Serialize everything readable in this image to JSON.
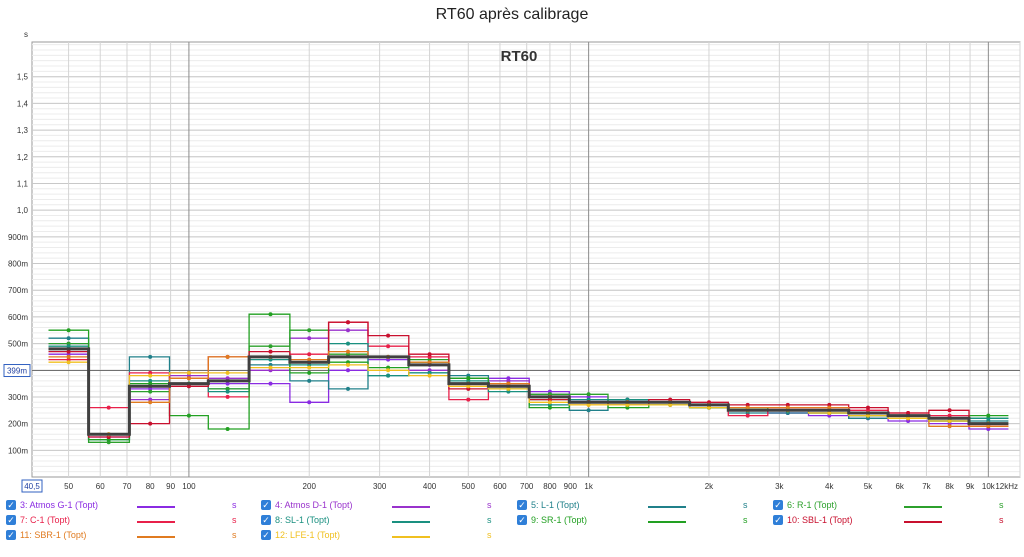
{
  "window_title": "RT60 après calibrage",
  "chart_data": {
    "type": "line",
    "step": true,
    "title": "RT60",
    "ylabel": "s",
    "xlabel": "",
    "x_scale": "log",
    "xlim": [
      40.5,
      12000
    ],
    "ylim": [
      0,
      1.63
    ],
    "grid": true,
    "cursor_value": "399m",
    "cursor_y": 0.399,
    "x_start_label": "40,5",
    "x_ticks": [
      {
        "v": 50,
        "label": "50"
      },
      {
        "v": 60,
        "label": "60"
      },
      {
        "v": 70,
        "label": "70"
      },
      {
        "v": 80,
        "label": "80"
      },
      {
        "v": 90,
        "label": "90"
      },
      {
        "v": 100,
        "label": "100"
      },
      {
        "v": 200,
        "label": "200"
      },
      {
        "v": 300,
        "label": "300"
      },
      {
        "v": 400,
        "label": "400"
      },
      {
        "v": 500,
        "label": "500"
      },
      {
        "v": 600,
        "label": "600"
      },
      {
        "v": 700,
        "label": "700"
      },
      {
        "v": 800,
        "label": "800"
      },
      {
        "v": 900,
        "label": "900"
      },
      {
        "v": 1000,
        "label": "1k"
      },
      {
        "v": 2000,
        "label": "2k"
      },
      {
        "v": 3000,
        "label": "3k"
      },
      {
        "v": 4000,
        "label": "4k"
      },
      {
        "v": 5000,
        "label": "5k"
      },
      {
        "v": 6000,
        "label": "6k"
      },
      {
        "v": 7000,
        "label": "7k"
      },
      {
        "v": 8000,
        "label": "8k"
      },
      {
        "v": 9000,
        "label": "9k"
      },
      {
        "v": 10000,
        "label": "10k"
      },
      {
        "v": 12000,
        "label": "12kHz"
      }
    ],
    "y_ticks": [
      {
        "v": 0.1,
        "label": "100m"
      },
      {
        "v": 0.2,
        "label": "200m"
      },
      {
        "v": 0.3,
        "label": "300m"
      },
      {
        "v": 0.4,
        "label": "400m"
      },
      {
        "v": 0.5,
        "label": "500m"
      },
      {
        "v": 0.6,
        "label": "600m"
      },
      {
        "v": 0.7,
        "label": "700m"
      },
      {
        "v": 0.8,
        "label": "800m"
      },
      {
        "v": 0.9,
        "label": "900m"
      },
      {
        "v": 1.0,
        "label": "1,0"
      },
      {
        "v": 1.1,
        "label": "1,1"
      },
      {
        "v": 1.2,
        "label": "1,2"
      },
      {
        "v": 1.3,
        "label": "1,3"
      },
      {
        "v": 1.4,
        "label": "1,4"
      },
      {
        "v": 1.5,
        "label": "1,5"
      }
    ],
    "bands": [
      50,
      63,
      80,
      100,
      125,
      160,
      200,
      250,
      315,
      400,
      500,
      630,
      800,
      1000,
      1250,
      1600,
      2000,
      2500,
      3150,
      4000,
      5000,
      6300,
      8000,
      10000
    ],
    "series": [
      {
        "name": "3: Atmos G-1 (Topt)",
        "color": "#8a2be2",
        "values": [
          0.46,
          0.15,
          0.33,
          0.39,
          0.35,
          0.35,
          0.28,
          0.4,
          0.44,
          0.42,
          0.35,
          0.37,
          0.32,
          0.3,
          0.29,
          0.28,
          0.27,
          0.25,
          0.24,
          0.23,
          0.22,
          0.21,
          0.2,
          0.18
        ]
      },
      {
        "name": "4: Atmos D-1 (Topt)",
        "color": "#9932cc",
        "values": [
          0.5,
          0.16,
          0.29,
          0.38,
          0.37,
          0.4,
          0.52,
          0.55,
          0.45,
          0.4,
          0.34,
          0.36,
          0.31,
          0.29,
          0.28,
          0.27,
          0.26,
          0.25,
          0.24,
          0.24,
          0.23,
          0.22,
          0.21,
          0.19
        ]
      },
      {
        "name": "5: L-1 (Topt)",
        "color": "#20808a",
        "values": [
          0.52,
          0.14,
          0.45,
          0.35,
          0.33,
          0.42,
          0.36,
          0.33,
          0.38,
          0.39,
          0.38,
          0.33,
          0.29,
          0.25,
          0.29,
          0.28,
          0.26,
          0.24,
          0.24,
          0.24,
          0.22,
          0.23,
          0.22,
          0.21
        ]
      },
      {
        "name": "6: R-1 (Topt)",
        "color": "#2ca02c",
        "values": [
          0.5,
          0.13,
          0.32,
          0.35,
          0.33,
          0.49,
          0.55,
          0.46,
          0.45,
          0.44,
          0.37,
          0.34,
          0.31,
          0.31,
          0.27,
          0.28,
          0.26,
          0.25,
          0.25,
          0.25,
          0.23,
          0.23,
          0.22,
          0.22
        ]
      },
      {
        "name": "7: C-1 (Topt)",
        "color": "#e8204a",
        "values": [
          0.44,
          0.26,
          0.39,
          0.37,
          0.3,
          0.45,
          0.46,
          0.58,
          0.49,
          0.45,
          0.29,
          0.34,
          0.3,
          0.28,
          0.27,
          0.28,
          0.27,
          0.23,
          0.26,
          0.26,
          0.25,
          0.24,
          0.23,
          0.19
        ]
      },
      {
        "name": "8: SL-1 (Topt)",
        "color": "#1a9080",
        "values": [
          0.49,
          0.14,
          0.36,
          0.34,
          0.32,
          0.44,
          0.42,
          0.5,
          0.38,
          0.39,
          0.36,
          0.32,
          0.27,
          0.29,
          0.29,
          0.28,
          0.26,
          0.26,
          0.25,
          0.25,
          0.23,
          0.22,
          0.21,
          0.22
        ]
      },
      {
        "name": "9: SR-1 (Topt)",
        "color": "#22a022",
        "values": [
          0.55,
          0.14,
          0.35,
          0.23,
          0.18,
          0.61,
          0.39,
          0.43,
          0.41,
          0.43,
          0.37,
          0.35,
          0.26,
          0.28,
          0.26,
          0.27,
          0.26,
          0.26,
          0.25,
          0.24,
          0.23,
          0.23,
          0.21,
          0.23
        ]
      },
      {
        "name": "10: SBL-1 (Topt)",
        "color": "#c8102e",
        "values": [
          0.47,
          0.15,
          0.2,
          0.34,
          0.45,
          0.47,
          0.43,
          0.58,
          0.53,
          0.46,
          0.33,
          0.35,
          0.29,
          0.28,
          0.28,
          0.29,
          0.28,
          0.27,
          0.27,
          0.27,
          0.26,
          0.24,
          0.25,
          0.2
        ]
      },
      {
        "name": "11: SBR-1 (Topt)",
        "color": "#e07b20",
        "values": [
          0.45,
          0.16,
          0.28,
          0.37,
          0.45,
          0.45,
          0.44,
          0.47,
          0.45,
          0.43,
          0.35,
          0.35,
          0.3,
          0.27,
          0.28,
          0.28,
          0.27,
          0.26,
          0.26,
          0.26,
          0.24,
          0.22,
          0.19,
          0.19
        ]
      },
      {
        "name": "12: LFE-1 (Topt)",
        "color": "#f0c020",
        "values": [
          0.43,
          0.16,
          0.38,
          0.39,
          0.39,
          0.41,
          0.41,
          0.42,
          0.4,
          0.38,
          0.34,
          0.33,
          0.28,
          0.27,
          0.27,
          0.27,
          0.26,
          0.25,
          0.25,
          0.24,
          0.23,
          0.22,
          0.21,
          0.2
        ]
      }
    ],
    "average": {
      "color": "#404040",
      "values": [
        0.48,
        0.16,
        0.34,
        0.35,
        0.36,
        0.45,
        0.43,
        0.45,
        0.45,
        0.42,
        0.35,
        0.34,
        0.3,
        0.28,
        0.28,
        0.28,
        0.27,
        0.25,
        0.25,
        0.25,
        0.24,
        0.23,
        0.22,
        0.2
      ]
    },
    "legend": {
      "placement": "bottom",
      "unit": "s"
    }
  }
}
